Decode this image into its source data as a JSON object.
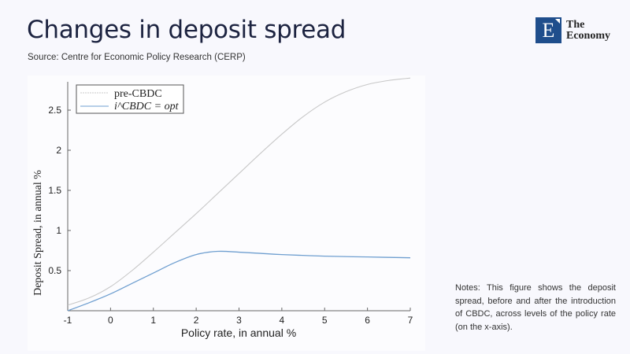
{
  "header": {
    "title": "Changes in deposit spread",
    "source": "Source: Centre for Economic Policy Research (CERP)"
  },
  "logo": {
    "letter": "E",
    "line1": "The",
    "line2": "Economy"
  },
  "notes": "Notes: This figure shows the deposit spread, before and after the introduction of CBDC, across levels of the policy rate (on the x-axis).",
  "chart_data": {
    "type": "line",
    "xlabel": "Policy rate, in annual %",
    "ylabel": "Deposit Spread, in annual %",
    "xlim": [
      -1,
      7
    ],
    "ylim": [
      0,
      2.85
    ],
    "xticks": [
      "-1",
      "0",
      "1",
      "2",
      "3",
      "4",
      "5",
      "6",
      "7"
    ],
    "yticks": [
      "0.5",
      "1",
      "1.5",
      "2",
      "2.5"
    ],
    "legend_position": "top-left",
    "series": [
      {
        "name": "pre-CBDC",
        "color": "#c8c8c8",
        "x": [
          -1,
          -0.5,
          0,
          0.5,
          1,
          1.5,
          2,
          2.5,
          3,
          3.5,
          4,
          4.5,
          5,
          5.5,
          6,
          6.5,
          7
        ],
        "y": [
          0.07,
          0.16,
          0.3,
          0.5,
          0.73,
          0.97,
          1.21,
          1.46,
          1.71,
          1.96,
          2.2,
          2.42,
          2.6,
          2.73,
          2.82,
          2.87,
          2.9
        ]
      },
      {
        "name": "i^CBDC = opt",
        "color": "#6f9fd0",
        "x": [
          -1,
          -0.5,
          0,
          0.5,
          1,
          1.5,
          2,
          2.5,
          3,
          3.5,
          4,
          5,
          6,
          7
        ],
        "y": [
          0.0,
          0.1,
          0.21,
          0.34,
          0.47,
          0.6,
          0.7,
          0.74,
          0.73,
          0.715,
          0.7,
          0.68,
          0.67,
          0.66
        ]
      }
    ]
  }
}
